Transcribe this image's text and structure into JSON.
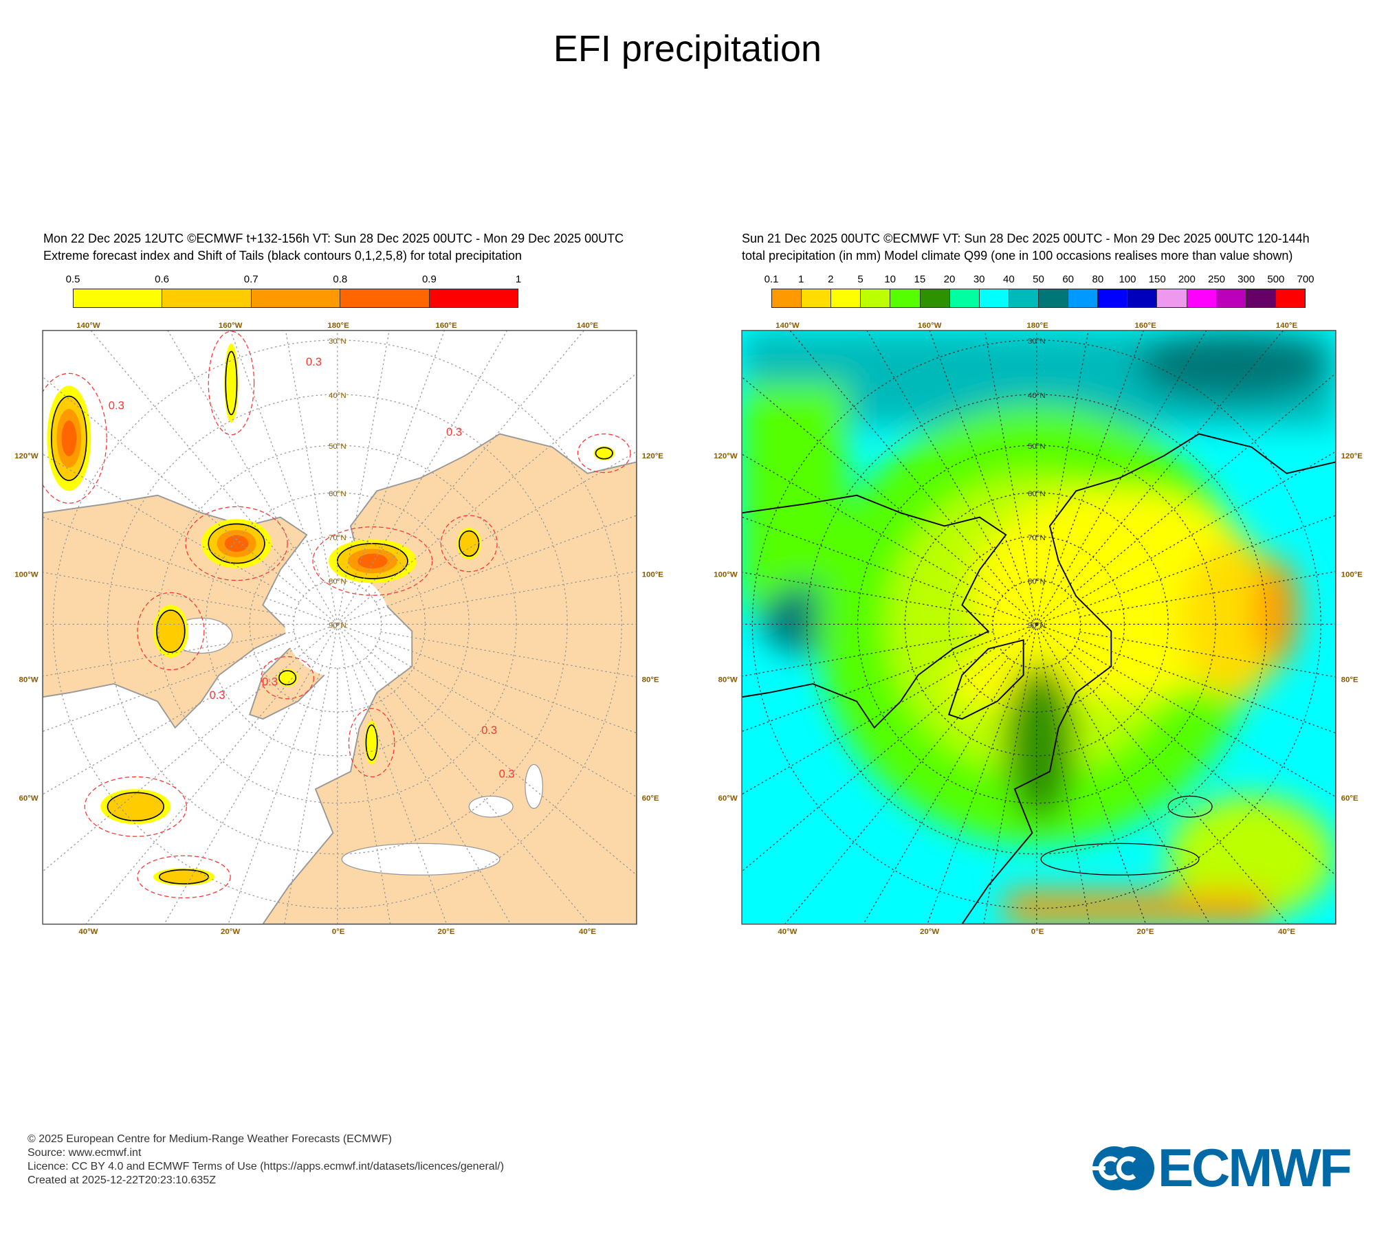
{
  "title": "EFI precipitation",
  "left_panel": {
    "header_line1": "Mon 22 Dec 2025 12UTC ©ECMWF t+132-156h  VT: Sun 28 Dec 2025 00UTC - Mon 29 Dec 2025 00UTC",
    "header_line2": "Extreme forecast index and Shift of Tails (black contours 0,1,2,5,8) for total precipitation",
    "colorbar": {
      "labels": [
        "0.5",
        "0.6",
        "0.7",
        "0.8",
        "0.9",
        "1"
      ],
      "colors": [
        "#ffff00",
        "#ffcc00",
        "#ff9900",
        "#ff6600",
        "#ff0000"
      ]
    },
    "contour_label": "0.3",
    "land_color": "#fcd8a8",
    "sot_contour_color": "#000000",
    "efi_contour_color": "#ff3333"
  },
  "right_panel": {
    "header_line1": "Sun 21 Dec 2025 00UTC ©ECMWF VT: Sun 28 Dec 2025 00UTC - Mon 29 Dec 2025 00UTC   120-144h",
    "header_line2": "total precipitation (in mm)  Model climate Q99 (one in 100 occasions realises more than value shown)",
    "colorbar": {
      "labels": [
        "0.1",
        "1",
        "2",
        "5",
        "10",
        "15",
        "20",
        "30",
        "40",
        "50",
        "60",
        "80",
        "100",
        "150",
        "200",
        "250",
        "300",
        "500",
        "700"
      ],
      "colors": [
        "#ff9900",
        "#ffdd00",
        "#ffff00",
        "#bbff00",
        "#55ff00",
        "#2e9100",
        "#00ffa0",
        "#00ffff",
        "#00baba",
        "#007777",
        "#0099ff",
        "#0000ff",
        "#0000bb",
        "#ee99ee",
        "#ff00ff",
        "#bb00bb",
        "#660066",
        "#ff0000"
      ]
    }
  },
  "map_labels": {
    "lon_top": [
      "140°W",
      "160°W",
      "180°E",
      "160°E",
      "140°E"
    ],
    "lon_bottom": [
      "40°W",
      "20°W",
      "0°E",
      "20°E",
      "40°E"
    ],
    "lat_left": [
      "120°W",
      "100°W",
      "80°W",
      "60°W"
    ],
    "lat_right": [
      "120°E",
      "100°E",
      "80°E",
      "60°E"
    ],
    "lat_rings": [
      "30°N",
      "40°N",
      "50°N",
      "60°N",
      "70°N",
      "80°N",
      "90°N"
    ]
  },
  "footer": {
    "line1": "© 2025 European Centre for Medium-Range Weather Forecasts (ECMWF)",
    "line2": "Source: www.ecmwf.int",
    "line3": "Licence: CC BY 4.0 and ECMWF Terms of Use (https://apps.ecmwf.int/datasets/licences/general/)",
    "line4": "Created at 2025-12-22T20:23:10.635Z"
  },
  "logo": {
    "text": "ECMWF",
    "color": "#0069a6"
  }
}
